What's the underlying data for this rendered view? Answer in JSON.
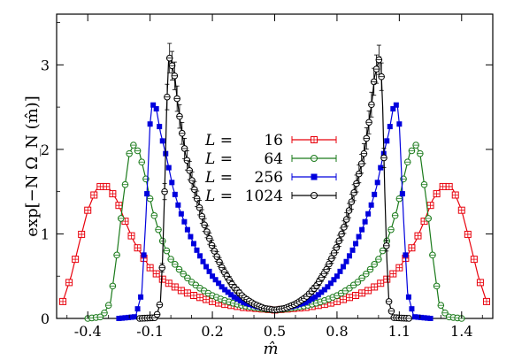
{
  "chart_data": {
    "type": "line",
    "xlabel": "m̂",
    "ylabel": "exp[−N Ω_N (m̂)]",
    "xlim": [
      -0.55,
      1.55
    ],
    "ylim": [
      0,
      3.6
    ],
    "x_ticks": [
      -0.4,
      -0.1,
      0.2,
      0.5,
      0.8,
      1.1,
      1.4
    ],
    "x_tick_labels": [
      "-0.4",
      "-0.1",
      "0.2",
      "0.5",
      "0.8",
      "1.1",
      "1.4"
    ],
    "y_ticks": [
      0,
      1,
      2,
      3
    ],
    "y_tick_labels": [
      "0",
      "1",
      "2",
      "3"
    ],
    "grid": false,
    "legend_position": "center",
    "symmetric_about": 0.5,
    "series": [
      {
        "name": "16",
        "legend_prefix": "L =",
        "color": "#e8000b",
        "marker": "square-cross",
        "peak_x": -0.33,
        "peak_y": 1.58,
        "center_value": 0.1,
        "left_half": [
          [
            -0.52,
            0.2
          ],
          [
            -0.48,
            0.5
          ],
          [
            -0.44,
            0.9
          ],
          [
            -0.4,
            1.28
          ],
          [
            -0.36,
            1.52
          ],
          [
            -0.33,
            1.58
          ],
          [
            -0.3,
            1.55
          ],
          [
            -0.26,
            1.4
          ],
          [
            -0.22,
            1.15
          ],
          [
            -0.18,
            0.92
          ],
          [
            -0.14,
            0.75
          ],
          [
            -0.1,
            0.6
          ],
          [
            -0.05,
            0.48
          ],
          [
            0.0,
            0.4
          ],
          [
            0.05,
            0.33
          ],
          [
            0.1,
            0.28
          ],
          [
            0.15,
            0.24
          ],
          [
            0.2,
            0.2
          ],
          [
            0.25,
            0.17
          ],
          [
            0.3,
            0.15
          ],
          [
            0.35,
            0.13
          ],
          [
            0.4,
            0.12
          ],
          [
            0.45,
            0.11
          ],
          [
            0.5,
            0.1
          ]
        ]
      },
      {
        "name": "64",
        "legend_prefix": "L =",
        "color": "#1a7a1a",
        "marker": "circle-cross",
        "peak_x": -0.18,
        "peak_y": 2.05,
        "center_value": 0.1,
        "left_half": [
          [
            -0.4,
            0.0
          ],
          [
            -0.33,
            0.02
          ],
          [
            -0.29,
            0.2
          ],
          [
            -0.26,
            0.75
          ],
          [
            -0.23,
            1.4
          ],
          [
            -0.2,
            1.95
          ],
          [
            -0.18,
            2.05
          ],
          [
            -0.15,
            1.95
          ],
          [
            -0.12,
            1.65
          ],
          [
            -0.09,
            1.3
          ],
          [
            -0.06,
            1.05
          ],
          [
            -0.03,
            0.85
          ],
          [
            0.0,
            0.7
          ],
          [
            0.05,
            0.55
          ],
          [
            0.1,
            0.43
          ],
          [
            0.15,
            0.34
          ],
          [
            0.2,
            0.27
          ],
          [
            0.25,
            0.22
          ],
          [
            0.3,
            0.18
          ],
          [
            0.35,
            0.15
          ],
          [
            0.4,
            0.13
          ],
          [
            0.45,
            0.11
          ],
          [
            0.5,
            0.1
          ]
        ]
      },
      {
        "name": "256",
        "legend_prefix": "L =",
        "color": "#0000dd",
        "marker": "filled-square",
        "peak_x": -0.09,
        "peak_y": 2.54,
        "center_value": 0.1,
        "left_half": [
          [
            -0.25,
            0.0
          ],
          [
            -0.17,
            0.02
          ],
          [
            -0.14,
            0.3
          ],
          [
            -0.12,
            1.2
          ],
          [
            -0.1,
            2.3
          ],
          [
            -0.09,
            2.54
          ],
          [
            -0.07,
            2.48
          ],
          [
            -0.05,
            2.2
          ],
          [
            -0.02,
            1.9
          ],
          [
            0.01,
            1.55
          ],
          [
            0.04,
            1.3
          ],
          [
            0.08,
            1.05
          ],
          [
            0.12,
            0.83
          ],
          [
            0.16,
            0.65
          ],
          [
            0.2,
            0.5
          ],
          [
            0.25,
            0.36
          ],
          [
            0.3,
            0.26
          ],
          [
            0.35,
            0.19
          ],
          [
            0.4,
            0.15
          ],
          [
            0.45,
            0.12
          ],
          [
            0.5,
            0.1
          ]
        ]
      },
      {
        "name": "1024",
        "legend_prefix": "L =",
        "color": "#000000",
        "marker": "circle-cross",
        "peak_x": -0.01,
        "peak_y": 3.1,
        "center_value": 0.1,
        "left_half": [
          [
            -0.15,
            0.0
          ],
          [
            -0.07,
            0.01
          ],
          [
            -0.05,
            0.2
          ],
          [
            -0.04,
            0.7
          ],
          [
            -0.03,
            1.5
          ],
          [
            -0.02,
            2.5
          ],
          [
            -0.01,
            3.1
          ],
          [
            0.0,
            3.05
          ],
          [
            0.01,
            2.95
          ],
          [
            0.02,
            2.85
          ],
          [
            0.03,
            2.6
          ],
          [
            0.05,
            2.25
          ],
          [
            0.07,
            1.95
          ],
          [
            0.1,
            1.65
          ],
          [
            0.13,
            1.38
          ],
          [
            0.16,
            1.12
          ],
          [
            0.2,
            0.85
          ],
          [
            0.25,
            0.58
          ],
          [
            0.3,
            0.38
          ],
          [
            0.35,
            0.25
          ],
          [
            0.4,
            0.17
          ],
          [
            0.45,
            0.12
          ],
          [
            0.5,
            0.1
          ]
        ]
      }
    ]
  }
}
